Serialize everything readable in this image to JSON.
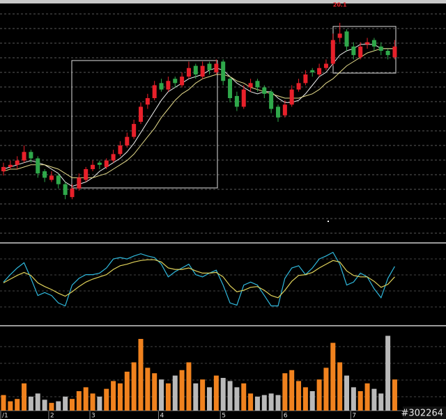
{
  "chart_data": [
    {
      "type": "candlestick",
      "open": [
        13.2,
        13.4,
        13.5,
        13.7,
        14.1,
        13.8,
        13.2,
        12.8,
        13.0,
        12.6,
        12.0,
        12.4,
        12.8,
        13.3,
        13.6,
        13.4,
        13.7,
        14.0,
        14.4,
        14.8,
        15.5,
        16.3,
        16.6,
        17.3,
        17.0,
        17.5,
        17.2,
        17.6,
        18.1,
        17.6,
        18.2,
        17.8,
        18.3,
        17.5,
        16.7,
        16.2,
        17.1,
        17.4,
        17.1,
        16.9,
        16.2,
        15.8,
        16.3,
        17.0,
        17.3,
        17.9,
        17.7,
        18.0,
        18.2,
        19.4,
        19.7,
        19.0,
        18.5,
        19.1,
        19.3,
        19.0,
        18.8,
        18.5
      ],
      "high": [
        13.6,
        13.7,
        13.9,
        14.4,
        14.2,
        13.9,
        13.3,
        13.2,
        13.1,
        12.7,
        12.6,
        13.1,
        13.4,
        13.7,
        13.7,
        13.8,
        14.2,
        14.6,
        15.0,
        15.6,
        16.4,
        16.8,
        17.4,
        17.5,
        17.6,
        17.6,
        17.8,
        18.3,
        18.2,
        18.3,
        18.3,
        18.4,
        18.4,
        17.6,
        16.9,
        17.2,
        17.5,
        17.5,
        17.2,
        17.0,
        16.3,
        16.5,
        17.2,
        17.5,
        17.9,
        18.0,
        18.2,
        18.4,
        19.6,
        20.1,
        19.8,
        19.2,
        19.2,
        19.4,
        19.4,
        19.2,
        18.9,
        19.3
      ],
      "low": [
        13.0,
        13.3,
        13.3,
        13.6,
        13.6,
        12.9,
        12.7,
        12.7,
        12.4,
        11.9,
        11.9,
        12.3,
        12.7,
        13.2,
        13.3,
        13.3,
        13.6,
        13.9,
        14.3,
        14.7,
        15.4,
        16.1,
        16.5,
        16.9,
        16.9,
        17.1,
        17.1,
        17.5,
        17.5,
        17.5,
        17.7,
        17.7,
        17.2,
        16.4,
        16.0,
        16.1,
        16.9,
        16.9,
        16.6,
        15.9,
        15.5,
        15.7,
        16.2,
        16.9,
        17.2,
        17.6,
        17.6,
        17.9,
        18.1,
        19.2,
        18.8,
        18.4,
        18.4,
        18.9,
        18.8,
        18.6,
        18.4,
        18.4
      ],
      "close": [
        13.4,
        13.5,
        13.7,
        14.1,
        13.8,
        13.1,
        12.9,
        13.0,
        12.6,
        12.1,
        12.4,
        12.9,
        13.3,
        13.5,
        13.5,
        13.7,
        14.0,
        14.4,
        14.8,
        15.4,
        16.2,
        16.6,
        17.2,
        17.0,
        17.4,
        17.3,
        17.6,
        18.0,
        17.7,
        18.1,
        17.9,
        18.2,
        17.4,
        16.6,
        16.2,
        17.0,
        17.3,
        17.1,
        16.8,
        16.1,
        15.7,
        16.3,
        17.0,
        17.3,
        17.7,
        17.8,
        18.0,
        18.2,
        19.3,
        19.6,
        19.0,
        18.6,
        19.0,
        19.2,
        19.0,
        18.8,
        18.6,
        19.0
      ],
      "up_color": "#e8202a",
      "down_color": "#2fa84a",
      "ma": [
        {
          "color": "#f2f2f2",
          "values": [
            13.3,
            13.4,
            13.5,
            13.6,
            13.7,
            13.6,
            13.5,
            13.3,
            13.1,
            12.7,
            12.5,
            12.6,
            12.7,
            12.9,
            13.2,
            13.4,
            13.6,
            13.8,
            14.1,
            14.5,
            15.0,
            15.5,
            16.0,
            16.5,
            16.9,
            17.1,
            17.3,
            17.5,
            17.6,
            17.7,
            17.9,
            18.0,
            17.9,
            17.6,
            17.3,
            17.1,
            16.9,
            16.8,
            16.9,
            16.9,
            16.6,
            16.4,
            16.4,
            16.5,
            16.8,
            17.2,
            17.6,
            17.8,
            18.2,
            18.6,
            18.8,
            18.9,
            19.1,
            19.1,
            19.1,
            18.9,
            18.9,
            18.9
          ]
        },
        {
          "color": "#e6dc8c",
          "values": [
            13.2,
            13.3,
            13.3,
            13.4,
            13.5,
            13.5,
            13.5,
            13.4,
            13.3,
            13.1,
            12.9,
            12.9,
            12.9,
            12.9,
            13.0,
            13.1,
            13.3,
            13.5,
            13.7,
            14.0,
            14.4,
            14.8,
            15.2,
            15.7,
            16.1,
            16.5,
            16.8,
            17.0,
            17.3,
            17.5,
            17.6,
            17.7,
            17.7,
            17.6,
            17.4,
            17.3,
            17.1,
            17.0,
            16.9,
            16.8,
            16.7,
            16.6,
            16.6,
            16.6,
            16.7,
            16.8,
            17.0,
            17.3,
            17.5,
            17.8,
            18.1,
            18.3,
            18.5,
            18.7,
            18.8,
            18.9,
            18.9,
            18.9
          ]
        }
      ],
      "ylim": [
        10,
        21
      ]
    },
    {
      "type": "line",
      "series": [
        {
          "color": "#2fb8dc",
          "values": [
            53,
            63,
            72,
            79,
            58,
            35,
            39,
            35,
            25,
            21,
            49,
            58,
            63,
            63,
            65,
            72,
            84,
            86,
            84,
            88,
            91,
            88,
            86,
            77,
            60,
            67,
            72,
            77,
            63,
            60,
            65,
            69,
            49,
            25,
            22,
            49,
            53,
            49,
            35,
            21,
            21,
            58,
            72,
            75,
            63,
            72,
            84,
            88,
            93,
            77,
            49,
            53,
            65,
            60,
            44,
            32,
            58,
            74
          ]
        },
        {
          "color": "#e0d25a",
          "values": [
            52,
            57,
            62,
            66,
            62,
            52,
            47,
            43,
            38,
            34,
            40,
            47,
            53,
            57,
            60,
            63,
            70,
            75,
            77,
            80,
            82,
            83,
            83,
            80,
            72,
            70,
            70,
            72,
            68,
            65,
            65,
            66,
            60,
            48,
            40,
            42,
            46,
            47,
            42,
            35,
            32,
            42,
            54,
            62,
            63,
            66,
            72,
            77,
            82,
            80,
            68,
            62,
            60,
            60,
            54,
            46,
            50,
            60
          ]
        }
      ],
      "ylim": [
        0,
        100
      ]
    },
    {
      "type": "bar",
      "values": [
        20,
        12,
        15,
        35,
        18,
        22,
        14,
        10,
        12,
        18,
        15,
        25,
        30,
        22,
        18,
        28,
        38,
        35,
        50,
        62,
        92,
        55,
        48,
        40,
        35,
        45,
        52,
        62,
        35,
        40,
        30,
        45,
        42,
        38,
        30,
        35,
        22,
        18,
        20,
        22,
        20,
        48,
        52,
        38,
        30,
        25,
        40,
        55,
        87,
        62,
        45,
        30,
        25,
        35,
        28,
        22,
        96,
        40
      ],
      "up_color": "#f0821e",
      "down_color": "#b9b9b9",
      "categories": [
        "/1",
        null,
        null,
        null,
        null,
        null,
        null,
        "2",
        null,
        null,
        null,
        null,
        null,
        "3",
        null,
        null,
        null,
        null,
        null,
        null,
        null,
        null,
        null,
        "4",
        null,
        null,
        null,
        null,
        null,
        null,
        null,
        null,
        "5",
        null,
        null,
        null,
        null,
        null,
        null,
        null,
        null,
        "6",
        null,
        null,
        null,
        null,
        null,
        null,
        null,
        null,
        null,
        "7",
        null,
        null,
        null,
        null,
        null,
        null
      ],
      "ylim": [
        0,
        100
      ]
    }
  ],
  "watermark": "#302264"
}
